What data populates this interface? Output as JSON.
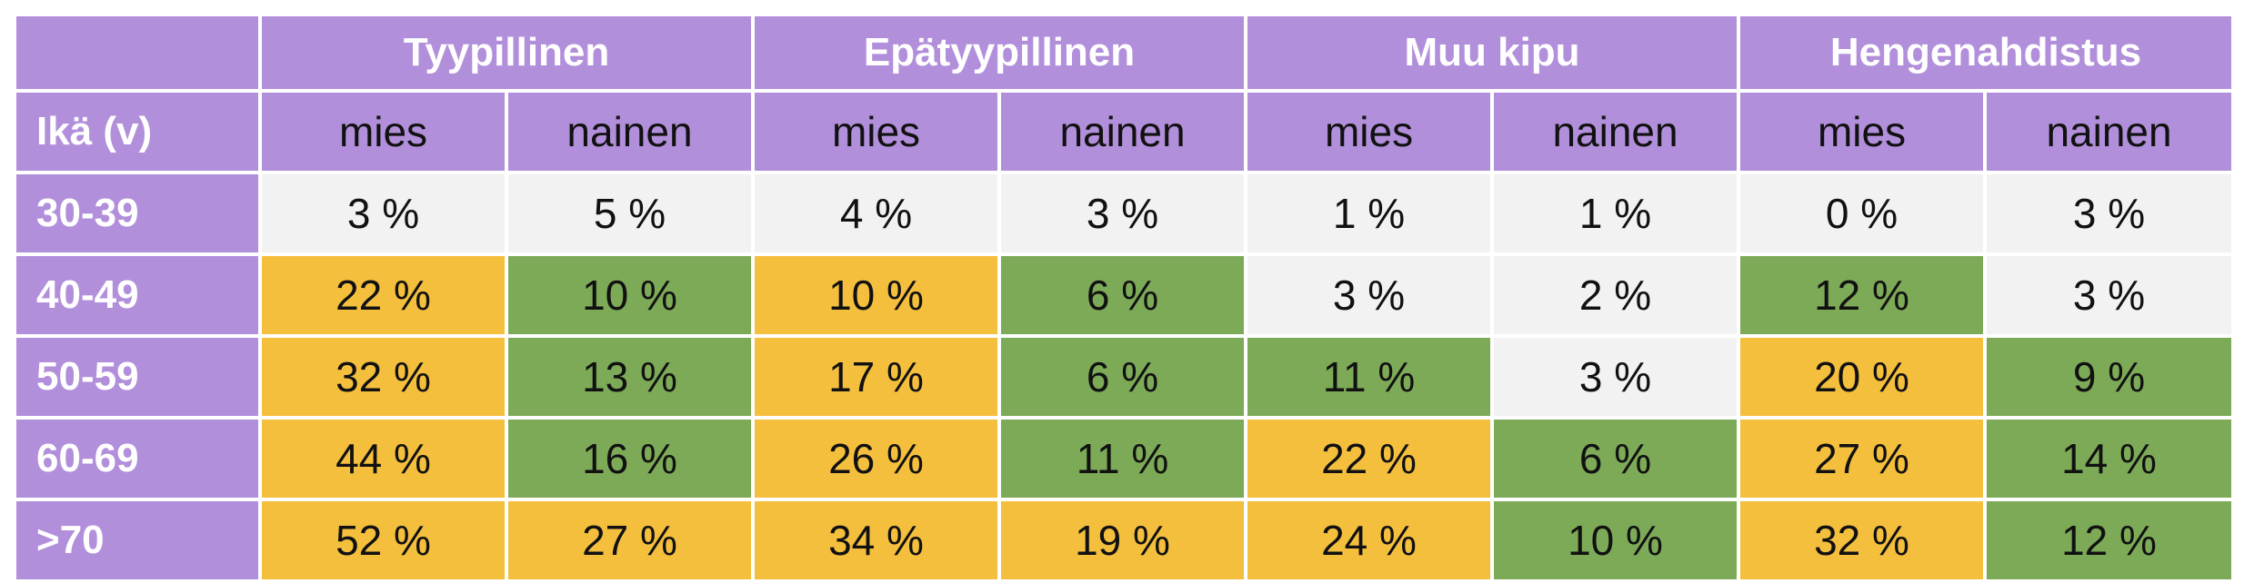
{
  "table": {
    "groups": [
      "Tyypillinen",
      "Epätyypillinen",
      "Muu kipu",
      "Hengenahdistus"
    ],
    "age_label": "Ikä (v)",
    "subheaders": [
      "mies",
      "nainen",
      "mies",
      "nainen",
      "mies",
      "nainen",
      "mies",
      "nainen"
    ],
    "rows": [
      {
        "age": "30-39",
        "values": [
          "3 %",
          "5 %",
          "4 %",
          "3 %",
          "1 %",
          "1 %",
          "0 %",
          "3 %"
        ]
      },
      {
        "age": "40-49",
        "values": [
          "22 %",
          "10 %",
          "10 %",
          "6 %",
          "3 %",
          "2 %",
          "12 %",
          "3 %"
        ]
      },
      {
        "age": "50-59",
        "values": [
          "32 %",
          "13 %",
          "17 %",
          "6 %",
          "11 %",
          "3 %",
          "20 %",
          "9 %"
        ]
      },
      {
        "age": "60-69",
        "values": [
          "44 %",
          "16 %",
          "26 %",
          "11 %",
          "22 %",
          "6 %",
          "27 %",
          "14 %"
        ]
      },
      {
        "age": ">70",
        "values": [
          "52 %",
          "27 %",
          "34 %",
          "19 %",
          "24 %",
          "10 %",
          "32 %",
          "12 %"
        ]
      }
    ],
    "cell_colors": [
      [
        "gray",
        "gray",
        "gray",
        "gray",
        "gray",
        "gray",
        "gray",
        "gray"
      ],
      [
        "yellow",
        "green",
        "yellow",
        "green",
        "gray",
        "gray",
        "green",
        "gray"
      ],
      [
        "yellow",
        "green",
        "yellow",
        "green",
        "green",
        "gray",
        "yellow",
        "green"
      ],
      [
        "yellow",
        "green",
        "yellow",
        "green",
        "yellow",
        "green",
        "yellow",
        "green"
      ],
      [
        "yellow",
        "yellow",
        "yellow",
        "yellow",
        "yellow",
        "green",
        "yellow",
        "green"
      ]
    ],
    "colors": {
      "header": "#b28fdb",
      "gray": "#f2f2f2",
      "yellow": "#f5bf3e",
      "green": "#7daa57"
    }
  }
}
